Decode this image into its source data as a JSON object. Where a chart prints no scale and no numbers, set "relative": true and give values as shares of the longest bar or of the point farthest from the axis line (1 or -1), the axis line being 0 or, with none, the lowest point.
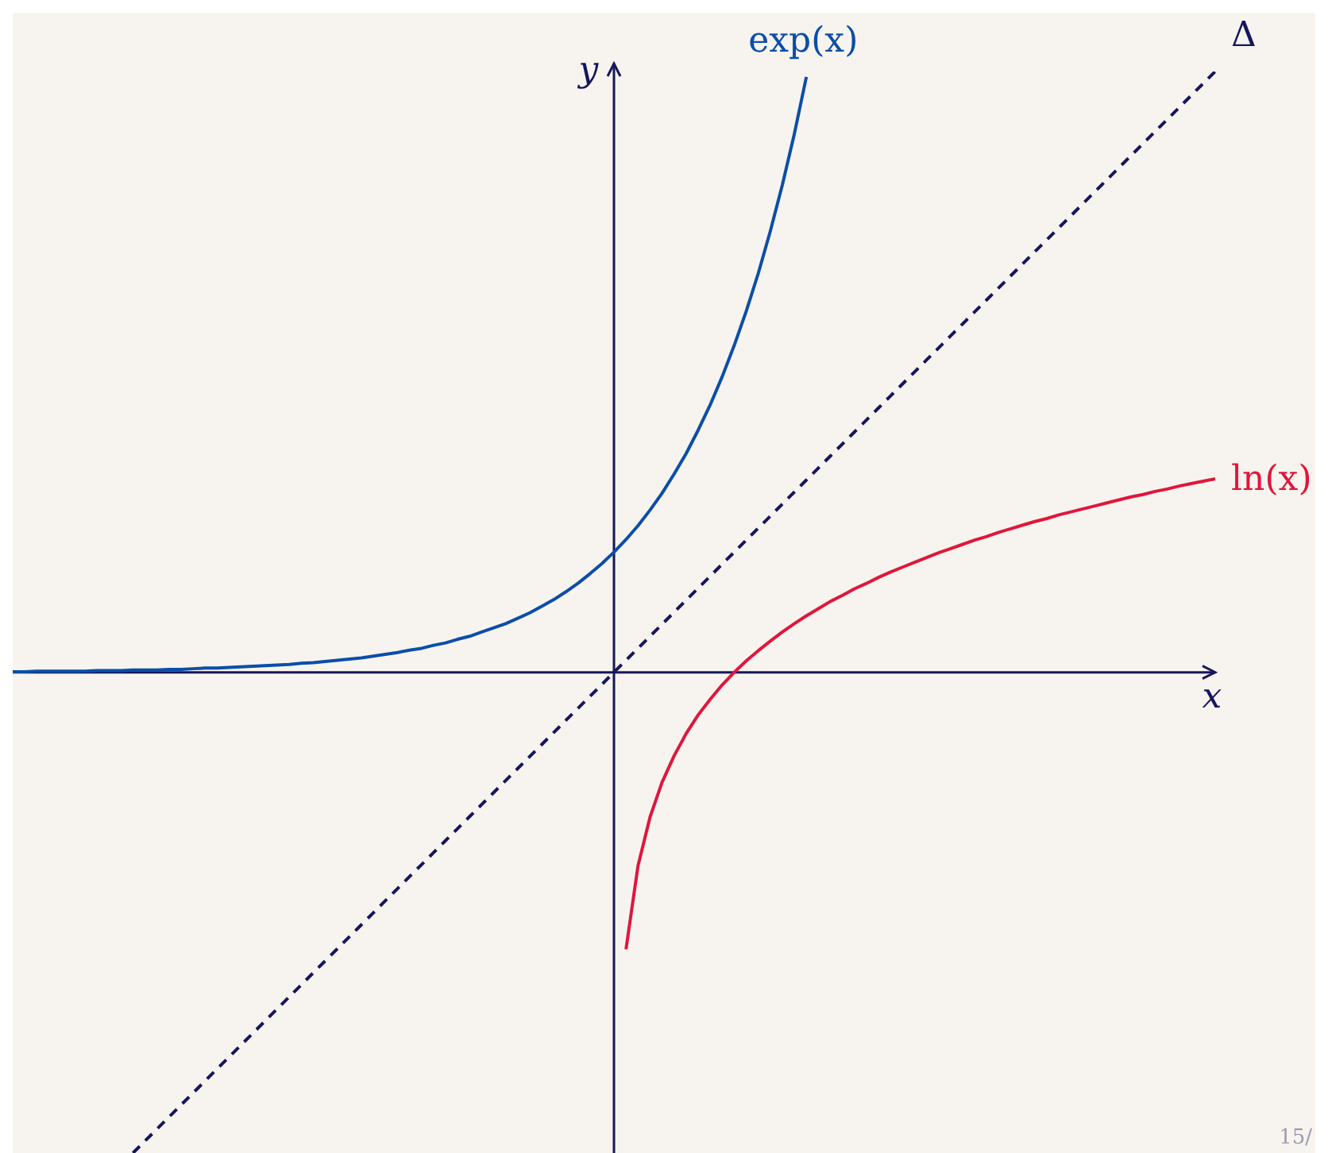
{
  "chart_data": {
    "type": "line",
    "relative": true,
    "xlabel": "x",
    "ylabel": "y",
    "legend": false,
    "marker": "none",
    "annotations": [
      "15/"
    ],
    "categories": [
      null,
      null,
      null,
      null,
      null,
      null,
      null,
      null,
      null,
      null,
      null,
      null,
      null,
      null,
      null,
      null,
      null,
      null,
      null,
      null,
      null,
      null,
      null,
      null,
      null,
      null,
      null,
      null,
      null,
      null,
      null,
      null,
      null,
      null,
      null,
      null,
      null,
      null,
      null,
      null,
      null,
      null,
      null,
      null,
      null,
      null,
      null,
      null,
      null,
      null,
      null,
      null,
      null,
      null,
      null,
      null,
      null,
      null,
      null,
      null,
      null,
      null,
      null,
      null,
      null,
      null,
      null,
      null,
      null,
      null,
      null,
      null,
      null,
      null,
      null,
      null,
      null,
      null,
      null,
      null,
      null,
      null,
      null,
      null,
      null,
      null,
      null,
      null,
      null,
      null,
      null,
      null,
      null,
      null,
      null,
      null,
      null,
      null,
      null,
      null,
      null
    ],
    "series": [
      {
        "name": "exp(x)",
        "color": "#0b4ea8",
        "line_style": "solid",
        "values": [
          0.001,
          0.001,
          0.002,
          0.002,
          0.002,
          0.002,
          0.002,
          0.003,
          0.003,
          0.003,
          0.004,
          0.004,
          0.004,
          0.005,
          0.005,
          0.006,
          0.007,
          0.007,
          0.008,
          0.009,
          0.01,
          0.011,
          0.012,
          0.013,
          0.015,
          0.016,
          0.018,
          0.02,
          0.022,
          0.024,
          0.027,
          0.03,
          0.033,
          0.037,
          0.04,
          0.045,
          0.049,
          0.055,
          0.06,
          0.067,
          0.074,
          0.081,
          0.09,
          0.099,
          0.11,
          0.121,
          0.134,
          0.148,
          0.164,
          0.181,
          0.2,
          0.221,
          0.244,
          0.27,
          0.298,
          0.33,
          0.364,
          0.403,
          0.445,
          0.492,
          0.544,
          0.601,
          0.664,
          0.734,
          0.811,
          0.896,
          0.991,
          null,
          null,
          null,
          null,
          null,
          null,
          null,
          null,
          null,
          null,
          null,
          null,
          null,
          null,
          null,
          null,
          null,
          null,
          null,
          null,
          null,
          null,
          null,
          null,
          null,
          null,
          null,
          null,
          null,
          null,
          null,
          null,
          null,
          null
        ]
      },
      {
        "name": "ln(x)",
        "color": "#e0163c",
        "line_style": "solid",
        "values": [
          null,
          null,
          null,
          null,
          null,
          null,
          null,
          null,
          null,
          null,
          null,
          null,
          null,
          null,
          null,
          null,
          null,
          null,
          null,
          null,
          null,
          null,
          null,
          null,
          null,
          null,
          null,
          null,
          null,
          null,
          null,
          null,
          null,
          null,
          null,
          null,
          null,
          null,
          null,
          null,
          null,
          null,
          null,
          null,
          null,
          null,
          null,
          null,
          null,
          null,
          null,
          -0.461,
          -0.322,
          -0.241,
          -0.183,
          -0.139,
          -0.102,
          -0.071,
          -0.045,
          -0.021,
          0,
          0.019,
          0.036,
          0.052,
          0.067,
          0.081,
          0.094,
          0.106,
          0.118,
          0.128,
          0.139,
          0.148,
          0.158,
          0.167,
          0.175,
          0.183,
          0.191,
          0.199,
          0.206,
          0.213,
          0.22,
          0.226,
          0.233,
          0.239,
          0.245,
          0.251,
          0.256,
          0.262,
          0.267,
          0.272,
          0.277,
          0.282,
          0.287,
          0.292,
          0.296,
          0.301,
          0.305,
          0.31,
          0.314,
          0.318,
          0.322
        ]
      },
      {
        "name": "Δ",
        "color": "#16165e",
        "line_style": "dashed",
        "values": [
          null,
          null,
          null,
          null,
          null,
          null,
          null,
          null,
          null,
          null,
          -0.8,
          -0.78,
          -0.76,
          -0.74,
          -0.72,
          -0.7,
          -0.68,
          -0.66,
          -0.64,
          -0.62,
          -0.6,
          -0.58,
          -0.56,
          -0.54,
          -0.52,
          -0.5,
          -0.48,
          -0.46,
          -0.44,
          -0.42,
          -0.4,
          -0.38,
          -0.36,
          -0.34,
          -0.32,
          -0.3,
          -0.28,
          -0.26,
          -0.24,
          -0.22,
          -0.2,
          -0.18,
          -0.16,
          -0.14,
          -0.12,
          -0.1,
          -0.08,
          -0.06,
          -0.04,
          -0.02,
          0,
          0.02,
          0.04,
          0.06,
          0.08,
          0.1,
          0.12,
          0.14,
          0.16,
          0.18,
          0.2,
          0.22,
          0.24,
          0.26,
          0.28,
          0.3,
          0.32,
          0.34,
          0.36,
          0.38,
          0.4,
          0.42,
          0.44,
          0.46,
          0.48,
          0.5,
          0.52,
          0.54,
          0.56,
          0.58,
          0.6,
          0.62,
          0.64,
          0.66,
          0.68,
          0.7,
          0.72,
          0.74,
          0.76,
          0.78,
          0.8,
          0.82,
          0.84,
          0.86,
          0.88,
          0.9,
          0.92,
          0.94,
          0.96,
          0.98,
          1.0
        ]
      }
    ]
  }
}
